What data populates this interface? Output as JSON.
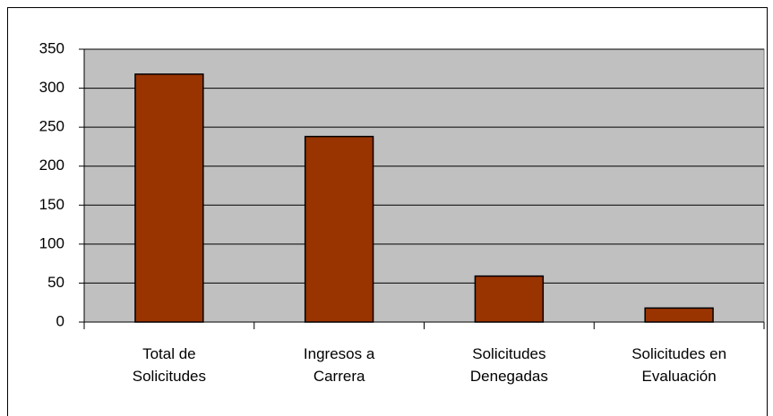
{
  "chart_data": {
    "type": "bar",
    "categories": [
      "Total de Solicitudes",
      "Ingresos a Carrera",
      "Solicitudes Denegadas",
      "Solicitudes en Evaluación"
    ],
    "values": [
      318,
      238,
      59,
      18
    ],
    "color": "#993300",
    "plot_background": "#c0c0c0",
    "ylim": [
      0,
      350
    ],
    "yticks": [
      0,
      50,
      100,
      150,
      200,
      250,
      300,
      350
    ],
    "grid": true
  }
}
